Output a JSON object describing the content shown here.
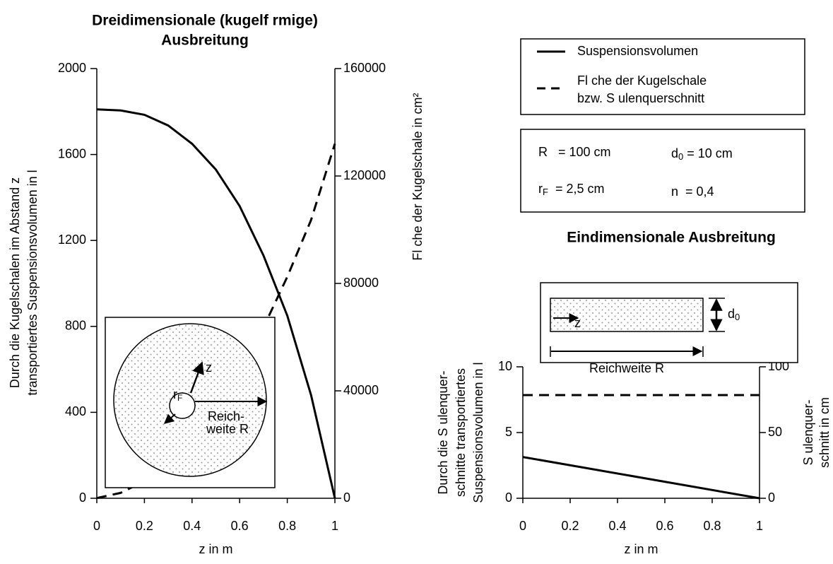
{
  "chart_data": [
    {
      "type": "line",
      "title": [
        "Dreidimensionale (kugelf rmige)",
        "Ausbreitung"
      ],
      "xlabel": "z in m",
      "ylabel": [
        "Durch die Kugelschalen im Abstand z",
        "transportiertes Suspensionsvolumen in l"
      ],
      "y2label": [
        "Fl che der Kugelschale in cm²"
      ],
      "xlim": [
        0,
        1
      ],
      "xticks": [
        0,
        0.2,
        0.4,
        0.6,
        0.8,
        1
      ],
      "ylim": [
        0,
        2000
      ],
      "yticks": [
        0,
        400,
        800,
        1200,
        1600,
        2000
      ],
      "y2lim": [
        0,
        160000
      ],
      "y2ticks": [
        0,
        40000,
        80000,
        120000,
        160000
      ],
      "x": [
        0,
        0.1,
        0.2,
        0.3,
        0.4,
        0.5,
        0.6,
        0.7,
        0.8,
        0.9,
        1
      ],
      "series": [
        {
          "style": "solid",
          "color": "#000000",
          "values": [
            1810,
            1805,
            1785,
            1735,
            1650,
            1530,
            1360,
            1130,
            850,
            480,
            0
          ]
        },
        {
          "style": "dashed",
          "color": "#000000",
          "axis": "y2",
          "values": [
            79,
            2000,
            6362,
            13685,
            23235,
            33006,
            47143,
            63617,
            82448,
            103620,
            132025
          ]
        }
      ]
    },
    {
      "type": "line",
      "title": [
        "Eindimensionale Ausbreitung"
      ],
      "xlabel": "z in m",
      "ylabel": [
        "Durch die S ulenquer-",
        "schnitte transportiertes",
        "Suspensionsvolumen in l"
      ],
      "y2label": [
        "S ulenquer-",
        "schnitt in cm"
      ],
      "xlim": [
        0,
        1
      ],
      "xticks": [
        0,
        0.2,
        0.4,
        0.6,
        0.8,
        1
      ],
      "ylim": [
        0,
        10
      ],
      "yticks": [
        0,
        5,
        10
      ],
      "y2lim": [
        0,
        100
      ],
      "y2ticks": [
        0,
        50,
        100
      ],
      "x": [
        0,
        1
      ],
      "series": [
        {
          "style": "solid",
          "color": "#000000",
          "values": [
            3.14,
            0
          ]
        },
        {
          "style": "dashed",
          "color": "#000000",
          "axis": "y2",
          "values": [
            78.5,
            78.5
          ]
        }
      ]
    }
  ],
  "legend": [
    {
      "style": "solid",
      "lines": [
        "Suspensionsvolumen"
      ]
    },
    {
      "style": "dashed",
      "lines": [
        "Fl che der Kugelschale",
        "bzw. S ulenquerschnitt"
      ]
    }
  ],
  "params": {
    "r": "R   = 100 cm",
    "d_main": "d",
    "d_sub": "0",
    "d_rest": " = 10 cm",
    "rf_main": "r",
    "rf_sub": "F",
    "rf_rest": "  = 2,5 cm",
    "n": "n  = 0,4"
  },
  "insets": {
    "sphere": {
      "z": "z",
      "r_main": "r",
      "r_sub": "F",
      "reach": [
        "Reich-",
        "weite R"
      ]
    },
    "column": {
      "z": "z",
      "d_main": "d",
      "d_sub": "0",
      "reach": "Reichweite R"
    }
  }
}
